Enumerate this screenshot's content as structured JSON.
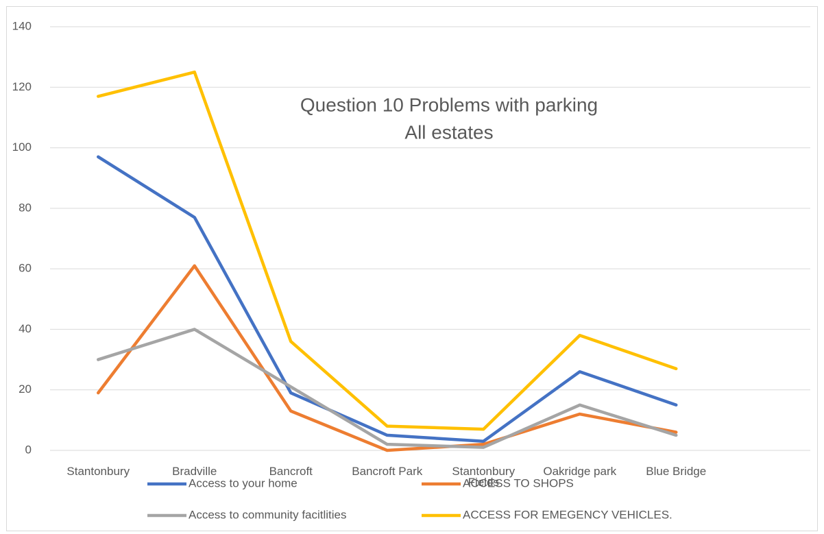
{
  "chart_data": {
    "type": "line",
    "title": [
      "Question 10 Problems with parking",
      "All estates"
    ],
    "categories": [
      "Stantonbury",
      "Bradville",
      "Bancroft",
      "Bancroft  Park",
      "Stantonbury Fields",
      "Oakridge park",
      "Blue  Bridge"
    ],
    "series": [
      {
        "name": "Access to your home",
        "color": "#4472c4",
        "values": [
          97,
          77,
          19,
          5,
          3,
          26,
          15
        ]
      },
      {
        "name": "ACCESS TO SHOPS",
        "color": "#ed7d31",
        "values": [
          19,
          61,
          13,
          0,
          2,
          12,
          6
        ]
      },
      {
        "name": "Access to community facitlities",
        "color": "#a5a5a5",
        "values": [
          30,
          40,
          21,
          2,
          1,
          15,
          5
        ]
      },
      {
        "name": "ACCESS FOR EMEGENCY VEHICLES.",
        "color": "#ffc000",
        "values": [
          117,
          125,
          36,
          8,
          7,
          38,
          27
        ]
      }
    ],
    "ylim": [
      0,
      140
    ],
    "yticks": [
      0,
      20,
      40,
      60,
      80,
      100,
      120,
      140
    ],
    "grid": true,
    "legend": "bottom"
  }
}
